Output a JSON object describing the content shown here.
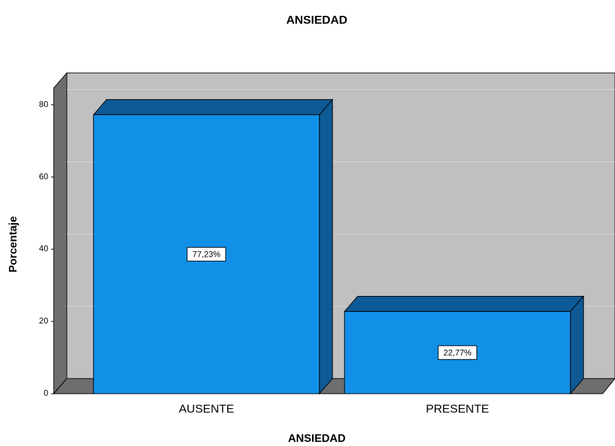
{
  "chart_data": {
    "type": "bar3d",
    "title": "ANSIEDAD",
    "xlabel": "ANSIEDAD",
    "ylabel": "Porcentaje",
    "categories": [
      "AUSENTE",
      "PRESENTE"
    ],
    "values": [
      77.23,
      22.77
    ],
    "value_labels": [
      "77,23%",
      "22,77%"
    ],
    "color": "#1290e8",
    "ylim": [
      0,
      84.6
    ],
    "yticks": [
      0,
      20,
      40,
      60,
      80
    ],
    "grid": true
  }
}
